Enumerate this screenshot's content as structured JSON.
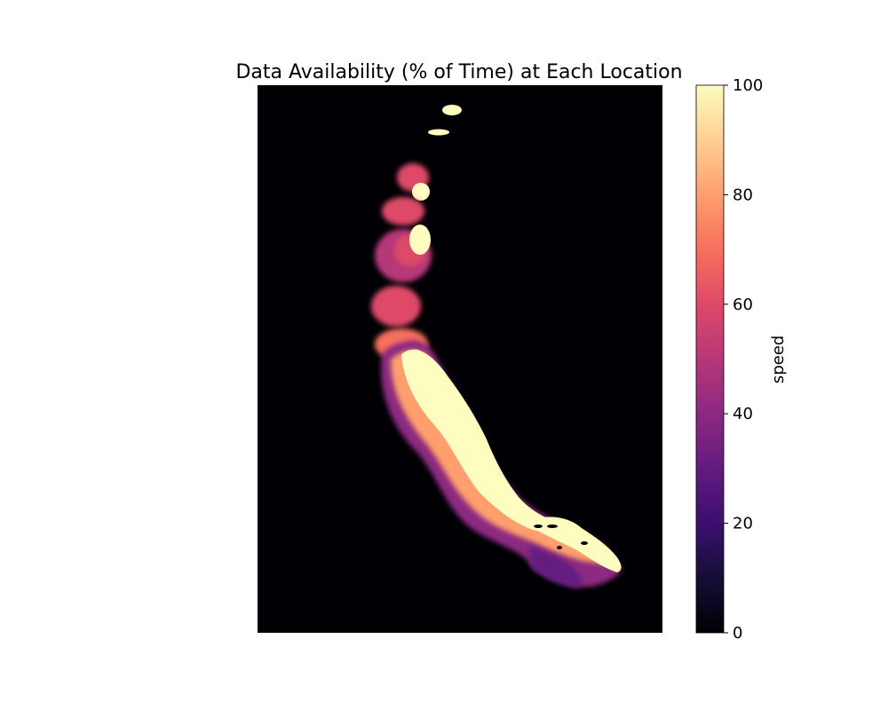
{
  "chart_data": {
    "type": "heatmap",
    "title": "Data Availability (% of Time) at Each Location",
    "xlabel": "",
    "ylabel": "",
    "axes_visible": false,
    "background_value": 0,
    "colormap": "magma",
    "colorbar": {
      "label": "speed",
      "range": [
        0,
        100
      ],
      "ticks": [
        0,
        20,
        40,
        60,
        80,
        100
      ],
      "tick_labels": [
        "0",
        "20",
        "40",
        "60",
        "80",
        "100"
      ],
      "placement": "right"
    },
    "regions_description": "Narrow band of coverage along a curving coastline on the left-center of the map; high values near the coast fading outward, with separate small spots at the top."
  }
}
